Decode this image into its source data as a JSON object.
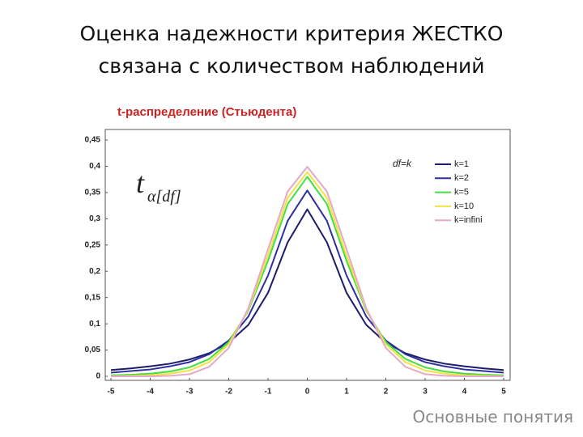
{
  "slide": {
    "title": [
      "Оценка надежности критерия ЖЕСТКО",
      "связана с количеством наблюдений"
    ],
    "footer": "Основные понятия"
  },
  "chart_data": {
    "type": "line",
    "title": "t-распределение (Стьюдента)",
    "annotations": {
      "legend_title": "df=k",
      "formula_base": "t",
      "formula_sub": "α[df]"
    },
    "x": [
      -5,
      -4.5,
      -4,
      -3.5,
      -3,
      -2.5,
      -2,
      -1.5,
      -1,
      -0.5,
      0,
      0.5,
      1,
      1.5,
      2,
      2.5,
      3,
      3.5,
      4,
      4.5,
      5
    ],
    "series": [
      {
        "name": "k=1",
        "color": "#1c1c6b",
        "values": [
          0.012,
          0.015,
          0.019,
          0.024,
          0.032,
          0.044,
          0.064,
          0.098,
          0.159,
          0.255,
          0.318,
          0.255,
          0.159,
          0.098,
          0.064,
          0.044,
          0.032,
          0.024,
          0.019,
          0.015,
          0.012
        ]
      },
      {
        "name": "k=2",
        "color": "#2e2ea0",
        "values": [
          0.007,
          0.01,
          0.013,
          0.019,
          0.027,
          0.042,
          0.068,
          0.114,
          0.192,
          0.296,
          0.354,
          0.296,
          0.192,
          0.114,
          0.068,
          0.042,
          0.027,
          0.019,
          0.013,
          0.01,
          0.007
        ]
      },
      {
        "name": "k=5",
        "color": "#44dd44",
        "values": [
          0.002,
          0.003,
          0.005,
          0.009,
          0.017,
          0.033,
          0.065,
          0.125,
          0.22,
          0.328,
          0.38,
          0.328,
          0.22,
          0.125,
          0.065,
          0.033,
          0.017,
          0.009,
          0.005,
          0.003,
          0.002
        ]
      },
      {
        "name": "k=10",
        "color": "#f2e244",
        "values": [
          0.0004,
          0.001,
          0.002,
          0.005,
          0.011,
          0.027,
          0.061,
          0.127,
          0.23,
          0.34,
          0.389,
          0.34,
          0.23,
          0.127,
          0.061,
          0.027,
          0.011,
          0.005,
          0.002,
          0.001,
          0.0004
        ]
      },
      {
        "name": "k=infini",
        "color": "#e4a8c8",
        "values": [
          0,
          0,
          0.0001,
          0.001,
          0.004,
          0.018,
          0.054,
          0.13,
          0.242,
          0.352,
          0.399,
          0.352,
          0.242,
          0.13,
          0.054,
          0.018,
          0.004,
          0.001,
          0.0001,
          0,
          0
        ]
      }
    ],
    "xlim": [
      -5,
      5
    ],
    "ylim": [
      0,
      0.45
    ],
    "xticks": [
      -5,
      -4,
      -3,
      -2,
      -1,
      0,
      1,
      2,
      3,
      4,
      5
    ],
    "yticks": [
      0,
      {
        "value": 0.05,
        "label": "0,05"
      },
      {
        "value": 0.1,
        "label": "0,1"
      },
      {
        "value": 0.15,
        "label": "0,15"
      },
      {
        "value": 0.2,
        "label": "0,2"
      },
      {
        "value": 0.25,
        "label": "0,25"
      },
      {
        "value": 0.3,
        "label": "0,3"
      },
      {
        "value": 0.35,
        "label": "0,35"
      },
      {
        "value": 0.4,
        "label": "0,4"
      },
      {
        "value": 0.45,
        "label": "0,45"
      }
    ],
    "legend": "top-right",
    "grid": false
  }
}
